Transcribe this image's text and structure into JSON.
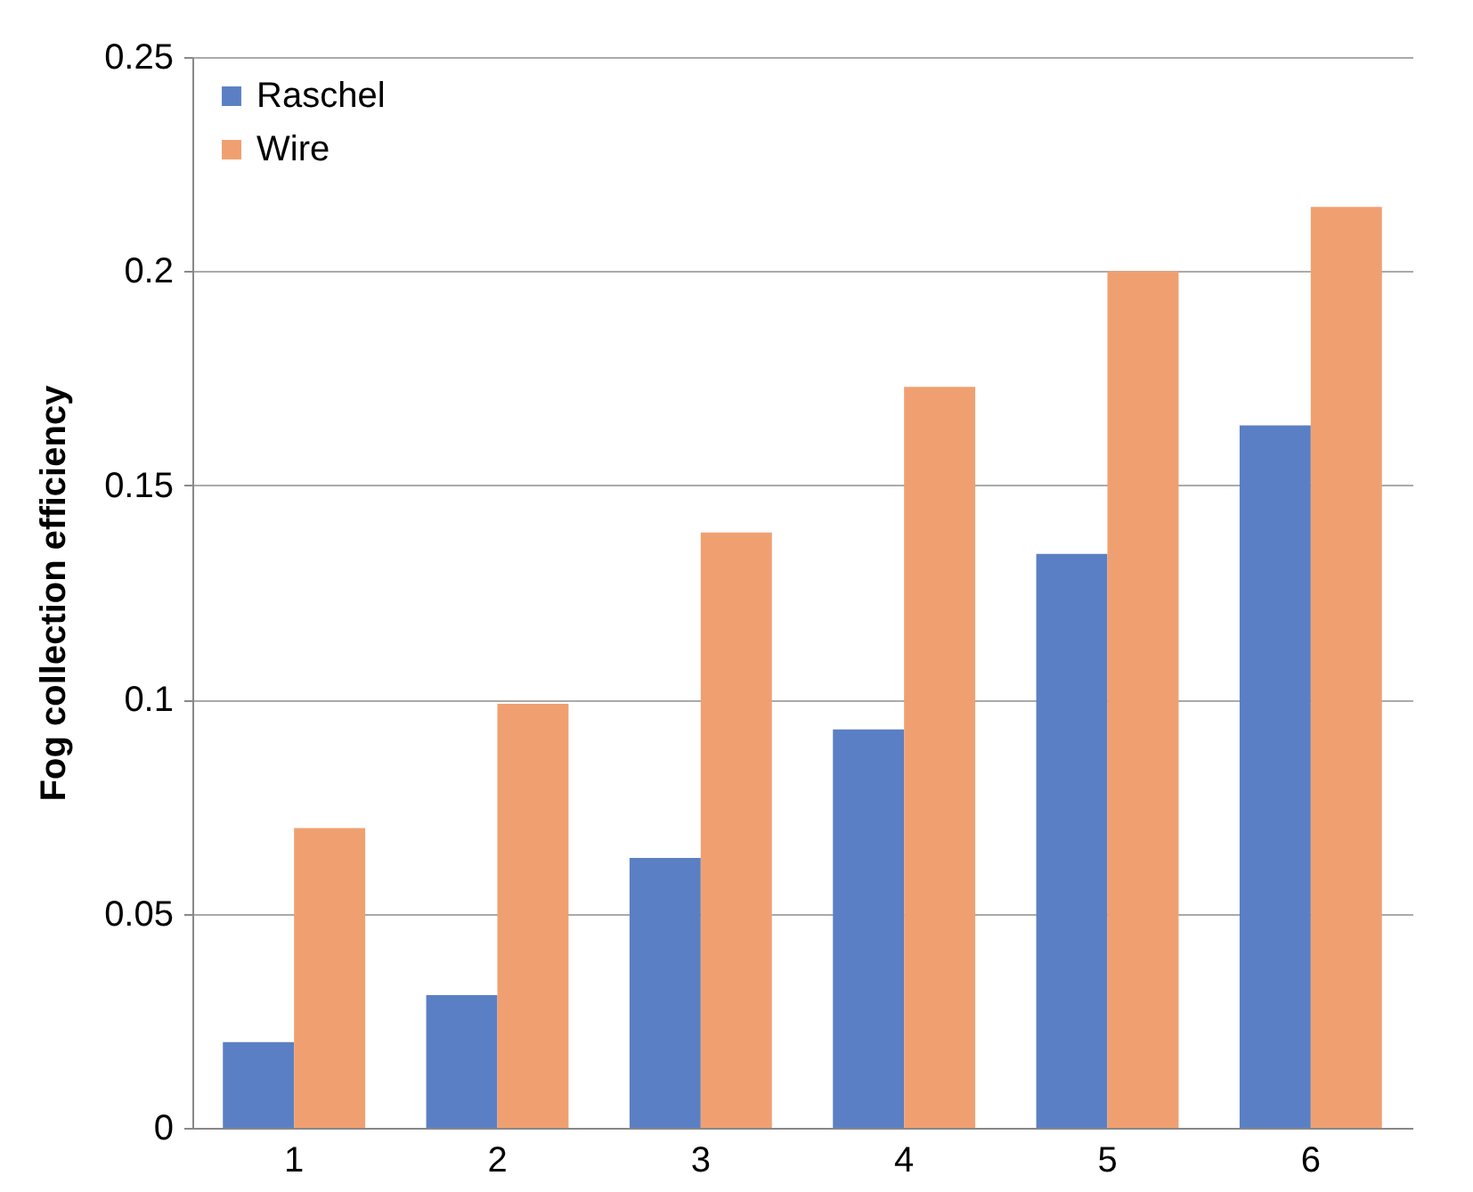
{
  "chart_data": {
    "type": "bar",
    "ylabel": "Fog collection efficiency",
    "categories": [
      "1",
      "2",
      "3",
      "4",
      "5",
      "6"
    ],
    "series": [
      {
        "name": "Raschel",
        "color": "#5b7fc4",
        "values": [
          0.02,
          0.031,
          0.063,
          0.093,
          0.134,
          0.164
        ]
      },
      {
        "name": "Wire",
        "color": "#f0a070",
        "values": [
          0.07,
          0.099,
          0.139,
          0.173,
          0.2,
          0.215
        ]
      }
    ],
    "ylim": [
      0,
      0.25
    ],
    "yticks": [
      0,
      0.05,
      0.1,
      0.15,
      0.2,
      0.25
    ],
    "grid": "y",
    "legend": "top left"
  }
}
